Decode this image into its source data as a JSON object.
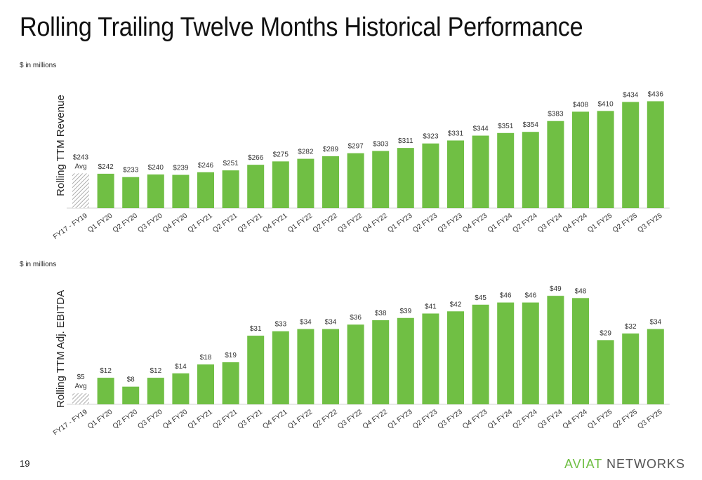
{
  "title": "Rolling Trailing Twelve Months Historical Performance",
  "page_number": "19",
  "brand": {
    "part1": "AVIAT",
    "part2": "NETWORKS"
  },
  "colors": {
    "bar": "#70bf44",
    "hatch": "#9a9a9a",
    "axis": "#d0d0d0"
  },
  "chart_data": [
    {
      "type": "bar",
      "units_note": "$ in millions",
      "ylabel": "Rolling TTM Revenue",
      "categories": [
        "FY17 - FY19",
        "Q1 FY20",
        "Q2 FY20",
        "Q3 FY20",
        "Q4 FY20",
        "Q1 FY21",
        "Q2 FY21",
        "Q3 FY21",
        "Q4 FY21",
        "Q1 FY22",
        "Q2 FY22",
        "Q3 FY22",
        "Q4 FY22",
        "Q1 FY23",
        "Q2 FY23",
        "Q3 FY23",
        "Q4 FY23",
        "Q1 FY24",
        "Q2 FY24",
        "Q3 FY24",
        "Q4 FY24",
        "Q1 FY25",
        "Q2 FY25",
        "Q3 FY25"
      ],
      "values": [
        243,
        242,
        233,
        240,
        239,
        246,
        251,
        266,
        275,
        282,
        289,
        297,
        303,
        311,
        323,
        331,
        344,
        351,
        354,
        383,
        408,
        410,
        434,
        436
      ],
      "labels": [
        "$243",
        "$242",
        "$233",
        "$240",
        "$239",
        "$246",
        "$251",
        "$266",
        "$275",
        "$282",
        "$289",
        "$297",
        "$303",
        "$311",
        "$323",
        "$331",
        "$344",
        "$351",
        "$354",
        "$383",
        "$408",
        "$410",
        "$434",
        "$436"
      ],
      "avg_label": "Avg",
      "ylim": [
        150,
        450
      ]
    },
    {
      "type": "bar",
      "units_note": "$ in millions",
      "ylabel": "Rolling TTM Adj. EBITDA",
      "categories": [
        "FY17 - FY19",
        "Q1 FY20",
        "Q2 FY20",
        "Q3 FY20",
        "Q4 FY20",
        "Q1 FY21",
        "Q2 FY21",
        "Q3 FY21",
        "Q4 FY21",
        "Q1 FY22",
        "Q2 FY22",
        "Q3 FY22",
        "Q4 FY22",
        "Q1 FY23",
        "Q2 FY23",
        "Q3 FY23",
        "Q4 FY23",
        "Q1 FY24",
        "Q2 FY24",
        "Q3 FY24",
        "Q4 FY24",
        "Q1 FY25",
        "Q2 FY25",
        "Q3 FY25"
      ],
      "values": [
        5,
        12,
        8,
        12,
        14,
        18,
        19,
        31,
        33,
        34,
        34,
        36,
        38,
        39,
        41,
        42,
        45,
        46,
        46,
        49,
        48,
        29,
        32,
        34
      ],
      "labels": [
        "$5",
        "$12",
        "$8",
        "$12",
        "$14",
        "$18",
        "$19",
        "$31",
        "$33",
        "$34",
        "$34",
        "$36",
        "$38",
        "$39",
        "$41",
        "$42",
        "$45",
        "$46",
        "$46",
        "$49",
        "$48",
        "$29",
        "$32",
        "$34"
      ],
      "avg_label": "Avg",
      "ylim": [
        0,
        50
      ]
    }
  ]
}
